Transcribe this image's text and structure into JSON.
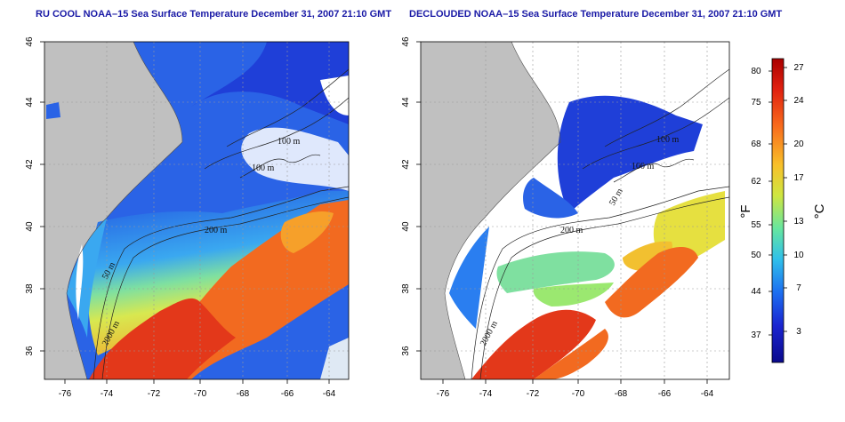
{
  "panels": [
    {
      "id": "left",
      "title": "RU COOL NOAA–15 Sea Surface Temperature December 31, 2007 21:10 GMT",
      "contour_labels": [
        "100 m",
        "100 m",
        "200 m",
        "50 m",
        "2000 m"
      ]
    },
    {
      "id": "right",
      "title": "DECLOUDED NOAA–15 Sea Surface Temperature December 31, 2007 21:10 GMT",
      "contour_labels": [
        "100 m",
        "100 m",
        "50 m",
        "200 m",
        "2000 m"
      ]
    }
  ],
  "axes": {
    "x_ticks": [
      "-76",
      "-74",
      "-72",
      "-70",
      "-68",
      "-66",
      "-64"
    ],
    "y_ticks": [
      "46",
      "44",
      "42",
      "40",
      "38",
      "36"
    ]
  },
  "colorbar": {
    "fahrenheit_ticks": [
      "80",
      "75",
      "68",
      "62",
      "55",
      "50",
      "44",
      "37"
    ],
    "celsius_ticks": [
      "27",
      "24",
      "20",
      "17",
      "13",
      "10",
      "7",
      "3"
    ],
    "fahrenheit_label": "°F",
    "celsius_label": "°C"
  },
  "colors": {
    "land": "#c0c0c0",
    "cloud": "#ffffff",
    "title": "#1a1aa6",
    "scale": [
      "#aa0000",
      "#e8321a",
      "#f97a20",
      "#f6c62a",
      "#c9e843",
      "#6fe79a",
      "#35c6e8",
      "#1f6ff0",
      "#1a22c8",
      "#0a0a8c"
    ]
  }
}
